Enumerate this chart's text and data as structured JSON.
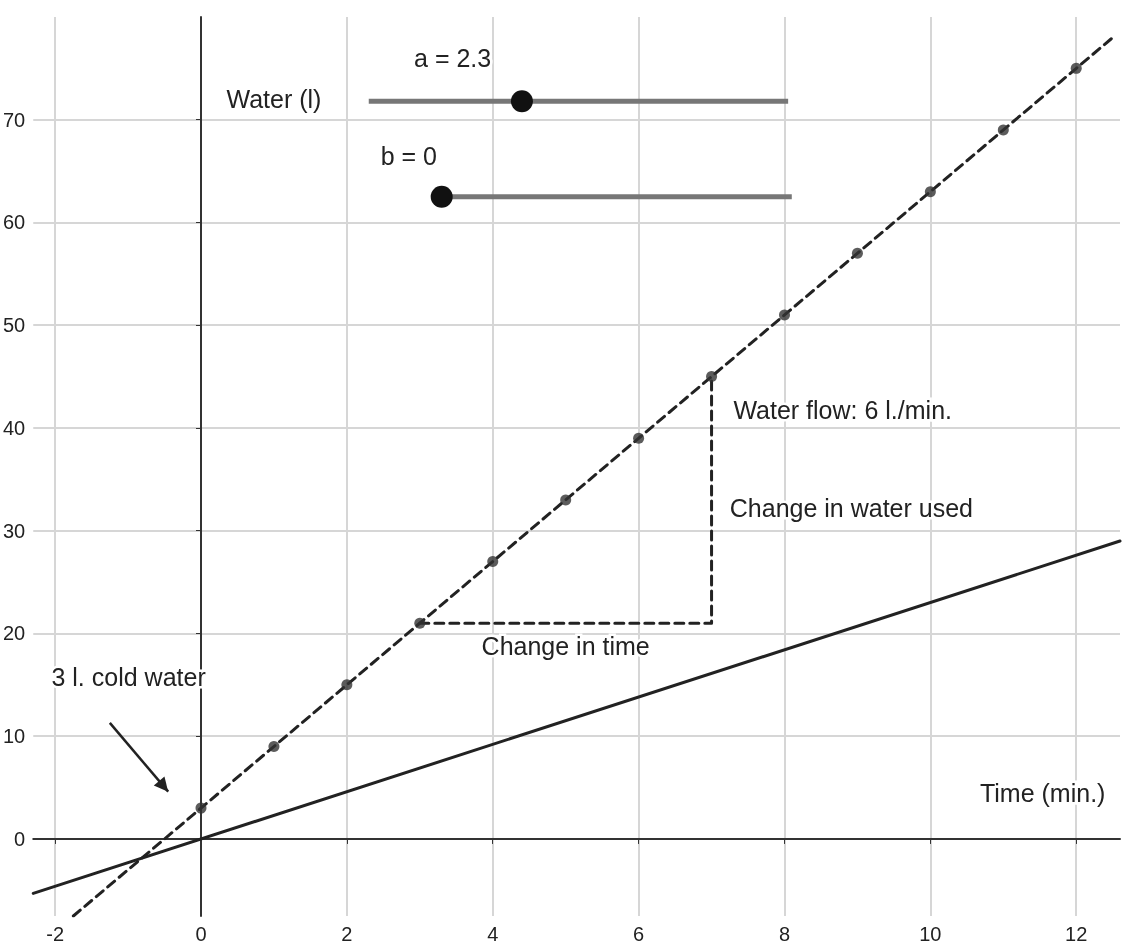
{
  "chart_data": {
    "type": "line",
    "xlabel": "Time (min.)",
    "ylabel": "Water (l)",
    "xlim": [
      -2.3,
      12.6
    ],
    "xticks": [
      -2,
      0,
      2,
      4,
      6,
      8,
      10,
      12
    ],
    "ylim": [
      -7.5,
      80
    ],
    "yticks": [
      0,
      10,
      20,
      30,
      40,
      50,
      60,
      70
    ],
    "grid": true,
    "marker": "none",
    "series": [
      {
        "line_style": "dashed",
        "color": "#222222",
        "x": [
          -1.75,
          12.5
        ],
        "values": [
          -7.5,
          78
        ]
      },
      {
        "type": "scatter",
        "marker": "circle",
        "color": "#333333",
        "x": [
          0,
          1,
          2,
          3,
          4,
          5,
          6,
          7,
          8,
          9,
          10,
          11,
          12
        ],
        "values": [
          3,
          9,
          15,
          21,
          27,
          33,
          39,
          45,
          51,
          57,
          63,
          69,
          75
        ]
      },
      {
        "line_style": "solid",
        "color": "#222222",
        "x": [
          -2.3,
          12.6
        ],
        "values": [
          -5.3,
          29
        ]
      },
      {
        "line_style": "dashed",
        "color": "#222222",
        "x": [
          3,
          7,
          7
        ],
        "values": [
          21,
          21,
          45
        ]
      }
    ],
    "annotations": [
      "a = 2.3",
      "b = 0",
      "Water flow: 6 l./min.",
      "Change in water used",
      "Change in time",
      "3 l. cold water"
    ]
  }
}
